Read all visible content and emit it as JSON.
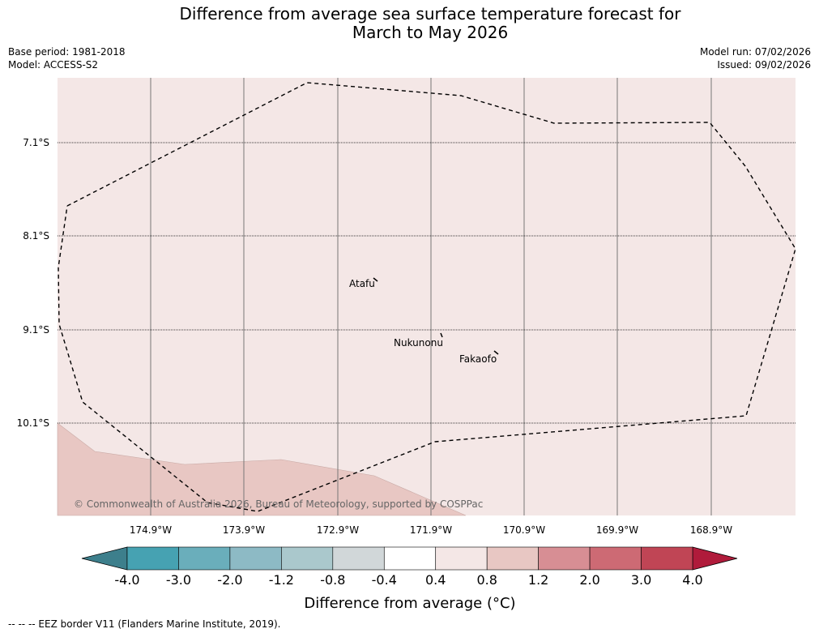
{
  "title_line1": "Difference from average sea surface temperature forecast for",
  "title_line2": "March to May 2026",
  "base_period": "Base period: 1981-2018",
  "model": "Model: ACCESS-S2",
  "model_run": "Model run: 07/02/2026",
  "issued": "Issued: 09/02/2026",
  "lat_labels": [
    "7.1°S",
    "8.1°S",
    "9.1°S",
    "10.1°S"
  ],
  "lon_labels": [
    "174.9°W",
    "173.9°W",
    "172.9°W",
    "171.9°W",
    "170.9°W",
    "169.9°W",
    "168.9°W"
  ],
  "places": [
    "Atafu",
    "Nukunonu",
    "Fakaofo"
  ],
  "copyright": "© Commonwealth of Australia 2026, Bureau of Meteorology, supported by COSPPac",
  "colorbar": {
    "ticks": [
      "-4.0",
      "-3.0",
      "-2.0",
      "-1.2",
      "-0.8",
      "-0.4",
      "0.4",
      "0.8",
      "1.2",
      "2.0",
      "3.0",
      "4.0"
    ],
    "colors": [
      "#46a2b2",
      "#6aaebb",
      "#8dbac5",
      "#aac8cc",
      "#d1d7d9",
      "#ffffff",
      "#f4e7e6",
      "#e8c7c3",
      "#d78e94",
      "#cd6a74",
      "#c04555"
    ],
    "under_color": "#3d7f8c",
    "over_color": "#b01b3b",
    "label": "Difference from average (°C)"
  },
  "footer": "--  --  -- EEZ border V11 (Flanders Marine Institute, 2019)."
}
